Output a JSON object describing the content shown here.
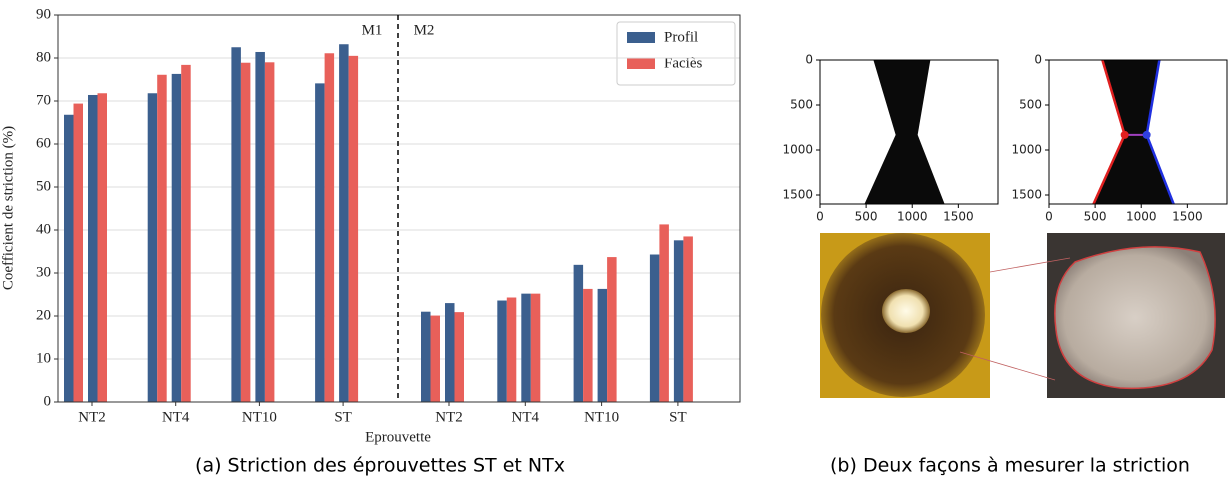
{
  "chart_data": {
    "type": "bar",
    "categories": [
      "NT2",
      null,
      "NT4",
      null,
      "NT10",
      null,
      "ST",
      null,
      "NT2",
      null,
      "NT4",
      null,
      "NT10",
      null,
      "ST",
      null
    ],
    "series": [
      {
        "name": "Profil",
        "color": "#3b5f8e",
        "values": [
          66.8,
          71.4,
          71.8,
          76.3,
          82.5,
          81.4,
          74.1,
          83.2,
          21.0,
          23.0,
          23.6,
          25.2,
          31.9,
          26.3,
          34.3,
          37.6
        ]
      },
      {
        "name": "Faciès",
        "color": "#e8605a",
        "values": [
          69.4,
          71.8,
          76.1,
          78.4,
          78.9,
          79.0,
          81.1,
          80.5,
          20.1,
          20.9,
          24.3,
          25.2,
          26.3,
          33.7,
          41.3,
          38.5
        ]
      }
    ],
    "ylim": [
      0,
      90
    ],
    "yticks": [
      0,
      10,
      20,
      30,
      40,
      50,
      60,
      70,
      80,
      90
    ],
    "xlabel": "Eprouvette",
    "ylabel": "Coefficient de striction (%)",
    "annotations": [
      "M1",
      "M2"
    ],
    "grid": true,
    "legend": "upper right"
  },
  "image_plots": [
    {
      "xlim": [
        0,
        1930
      ],
      "ylim": [
        0,
        1600
      ],
      "xticks": [
        0,
        500,
        1000,
        1500
      ],
      "yticks": [
        0,
        500,
        1000,
        1500
      ]
    },
    {
      "xlim": [
        0,
        1930
      ],
      "ylim": [
        0,
        1600
      ],
      "xticks": [
        0,
        500,
        1000,
        1500
      ],
      "yticks": [
        0,
        500,
        1000,
        1500
      ]
    }
  ],
  "captions": [
    "(a) Striction des éprouvettes ST et NTx",
    "(b) Deux façons à mesurer la striction"
  ]
}
